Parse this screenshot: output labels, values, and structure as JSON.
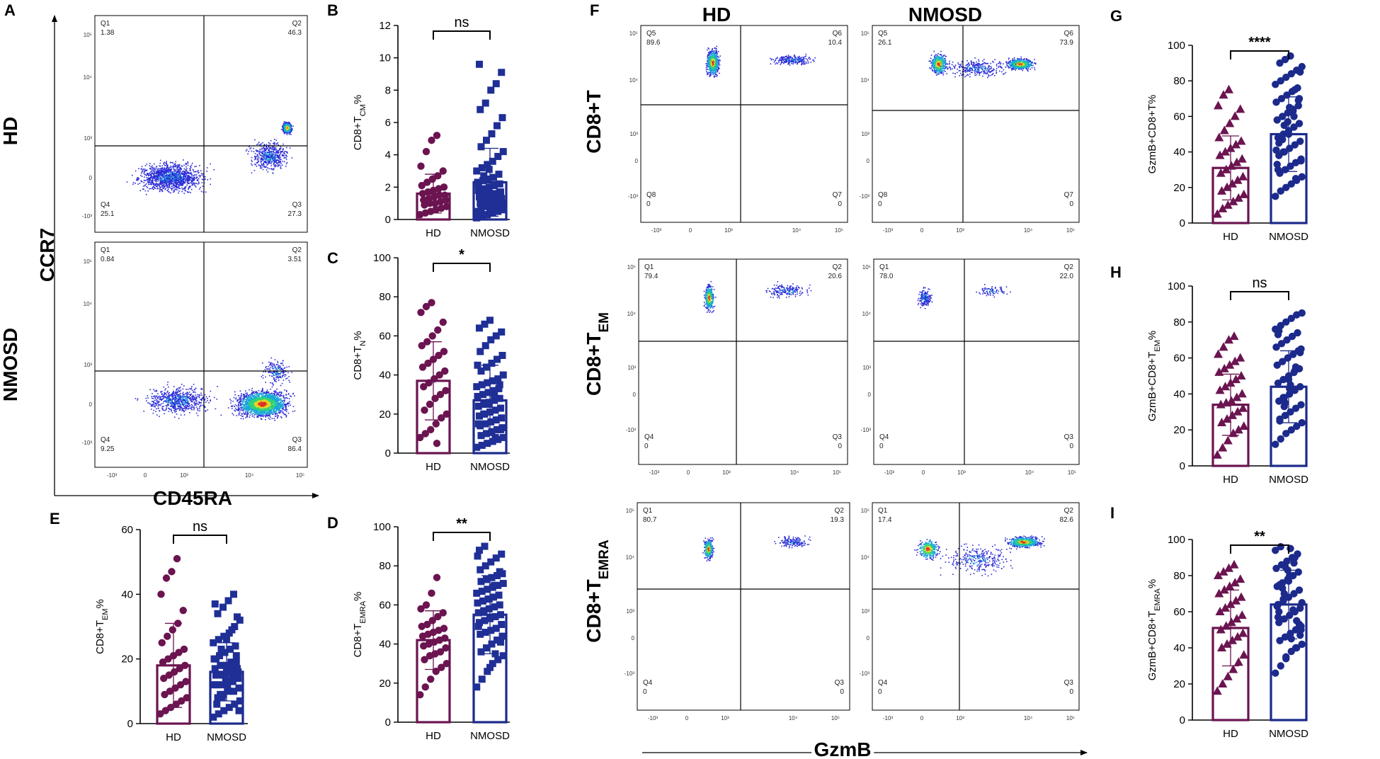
{
  "flow_A": {
    "letter": "A",
    "y_axis_label": "CCR7",
    "x_axis_label": "CD45RA",
    "x_ticks": [
      "-10³",
      "0",
      "10³",
      "10⁴",
      "10⁵"
    ],
    "y_ticks": [
      "10⁵",
      "10⁴",
      "10³",
      "0",
      "-10³"
    ],
    "rows": [
      {
        "label": "HD",
        "quads": [
          [
            "Q1",
            "1.38"
          ],
          [
            "Q2",
            "46.3"
          ],
          [
            "Q3",
            "27.3"
          ],
          [
            "Q4",
            "25.1"
          ]
        ]
      },
      {
        "label": "NMOSD",
        "quads": [
          [
            "Q1",
            "0.84"
          ],
          [
            "Q2",
            "3.51"
          ],
          [
            "Q3",
            "86.4"
          ],
          [
            "Q4",
            "9.25"
          ]
        ]
      }
    ]
  },
  "flow_F": {
    "letter": "F",
    "column_labels": [
      "HD",
      "NMOSD"
    ],
    "x_axis_label": "GzmB",
    "x_ticks": [
      "-10³",
      "0",
      "10³",
      "10⁴",
      "10⁵"
    ],
    "y_ticks": [
      "10⁵",
      "10⁴",
      "10³",
      "0",
      "-10³"
    ],
    "rows": [
      {
        "label": "CD8+T",
        "label_sub": "",
        "panels": [
          [
            [
              "Q5",
              "89.6"
            ],
            [
              "Q6",
              "10.4"
            ],
            [
              "Q7",
              "0"
            ],
            [
              "Q8",
              "0"
            ]
          ],
          [
            [
              "Q5",
              "26.1"
            ],
            [
              "Q6",
              "73.9"
            ],
            [
              "Q7",
              "0"
            ],
            [
              "Q8",
              "0"
            ]
          ]
        ]
      },
      {
        "label": "CD8+T",
        "label_sub": "EM",
        "panels": [
          [
            [
              "Q1",
              "79.4"
            ],
            [
              "Q2",
              "20.6"
            ],
            [
              "Q3",
              "0"
            ],
            [
              "Q4",
              "0"
            ]
          ],
          [
            [
              "Q1",
              "78.0"
            ],
            [
              "Q2",
              "22.0"
            ],
            [
              "Q3",
              "0"
            ],
            [
              "Q4",
              "0"
            ]
          ]
        ]
      },
      {
        "label": "CD8+T",
        "label_sub": "EMRA",
        "panels": [
          [
            [
              "Q1",
              "80.7"
            ],
            [
              "Q2",
              "19.3"
            ],
            [
              "Q3",
              "0"
            ],
            [
              "Q4",
              "0"
            ]
          ],
          [
            [
              "Q1",
              "17.4"
            ],
            [
              "Q2",
              "82.6"
            ],
            [
              "Q3",
              "0"
            ],
            [
              "Q4",
              "0"
            ]
          ]
        ]
      }
    ]
  },
  "colors": {
    "hd": "#6b1450",
    "nmosd": "#1c2a8c",
    "nmosd_square": "#1f2f96",
    "density": [
      "#2b2bd6",
      "#1aa6d8",
      "#2fd17a",
      "#e3d62a",
      "#e0321f"
    ]
  },
  "chart_data": [
    {
      "id": "B",
      "type": "bar",
      "marker": "circle/square",
      "ylabel_main": "CD8+T",
      "ylabel_sub": "CM",
      "ylabel_tail": "%",
      "categories": [
        "HD",
        "NMOSD"
      ],
      "means": [
        1.6,
        2.3
      ],
      "sd": [
        1.2,
        2.1
      ],
      "ylim": [
        0,
        12
      ],
      "yticks": [
        0,
        2,
        4,
        6,
        8,
        10,
        12
      ],
      "significance": "ns",
      "points": [
        [
          0.3,
          0.4,
          0.5,
          0.6,
          0.7,
          0.8,
          0.9,
          1.0,
          1.0,
          1.1,
          1.2,
          1.2,
          1.3,
          1.4,
          1.5,
          1.5,
          1.6,
          1.7,
          1.8,
          1.9,
          2.0,
          2.1,
          2.3,
          2.5,
          2.7,
          3.0,
          3.3,
          4.2,
          4.9,
          5.2
        ],
        [
          0.1,
          0.2,
          0.3,
          0.4,
          0.5,
          0.6,
          0.7,
          0.8,
          0.8,
          0.9,
          1.0,
          1.0,
          1.1,
          1.2,
          1.3,
          1.3,
          1.4,
          1.5,
          1.6,
          1.6,
          1.7,
          1.8,
          1.9,
          2.0,
          2.1,
          2.2,
          2.3,
          2.4,
          2.5,
          2.6,
          2.8,
          3.0,
          3.2,
          3.4,
          3.6,
          3.9,
          4.2,
          4.5,
          4.9,
          5.3,
          5.8,
          6.3,
          6.8,
          7.2,
          8.0,
          8.4,
          9.1,
          9.6,
          0.3,
          0.6,
          1.1,
          1.4,
          2.2,
          2.7,
          3.1,
          0.9,
          1.7,
          0.5
        ]
      ]
    },
    {
      "id": "C",
      "type": "bar",
      "marker": "circle/square",
      "ylabel_main": "CD8+T",
      "ylabel_sub": "N",
      "ylabel_tail": "%",
      "categories": [
        "HD",
        "NMOSD"
      ],
      "means": [
        37,
        27
      ],
      "sd": [
        20,
        18
      ],
      "ylim": [
        0,
        100
      ],
      "yticks": [
        0,
        20,
        40,
        60,
        80,
        100
      ],
      "significance": "*",
      "points": [
        [
          8,
          10,
          12,
          15,
          18,
          20,
          22,
          25,
          28,
          30,
          32,
          34,
          36,
          38,
          40,
          42,
          44,
          46,
          48,
          50,
          52,
          55,
          57,
          60,
          63,
          67,
          72,
          75,
          77,
          5
        ],
        [
          3,
          4,
          5,
          6,
          7,
          8,
          9,
          10,
          11,
          12,
          13,
          14,
          15,
          16,
          17,
          18,
          19,
          20,
          21,
          22,
          23,
          24,
          25,
          26,
          27,
          28,
          29,
          30,
          31,
          32,
          33,
          34,
          35,
          36,
          37,
          38,
          40,
          42,
          44,
          46,
          48,
          50,
          52,
          55,
          58,
          60,
          62,
          64,
          66,
          68,
          8,
          12,
          15,
          20,
          25,
          30,
          35,
          45
        ]
      ]
    },
    {
      "id": "D",
      "type": "bar",
      "marker": "circle/square",
      "ylabel_main": "CD8+T",
      "ylabel_sub": "EMRA",
      "ylabel_tail": "%",
      "categories": [
        "HD",
        "NMOSD"
      ],
      "means": [
        42,
        55
      ],
      "sd": [
        15,
        20
      ],
      "ylim": [
        0,
        100
      ],
      "yticks": [
        0,
        20,
        40,
        60,
        80,
        100
      ],
      "significance": "**",
      "points": [
        [
          14,
          18,
          22,
          26,
          28,
          30,
          32,
          34,
          35,
          36,
          38,
          39,
          40,
          41,
          42,
          43,
          44,
          45,
          46,
          47,
          48,
          49,
          50,
          52,
          54,
          56,
          58,
          60,
          66,
          74
        ],
        [
          18,
          22,
          26,
          30,
          32,
          34,
          36,
          38,
          40,
          42,
          44,
          45,
          46,
          47,
          48,
          50,
          51,
          52,
          53,
          54,
          55,
          56,
          57,
          58,
          59,
          60,
          61,
          62,
          63,
          64,
          65,
          66,
          67,
          68,
          69,
          70,
          71,
          72,
          73,
          74,
          75,
          76,
          78,
          80,
          82,
          84,
          86,
          88,
          90,
          28,
          35,
          41,
          49,
          57,
          63,
          70,
          77,
          85
        ]
      ]
    },
    {
      "id": "E",
      "type": "bar",
      "marker": "circle/square",
      "ylabel_main": "CD8+T",
      "ylabel_sub": "EM",
      "ylabel_tail": "%",
      "categories": [
        "HD",
        "NMOSD"
      ],
      "means": [
        18,
        16
      ],
      "sd": [
        13,
        9
      ],
      "ylim": [
        0,
        60
      ],
      "yticks": [
        0,
        20,
        40,
        60
      ],
      "significance": "ns",
      "points": [
        [
          3,
          4,
          5,
          6,
          7,
          8,
          9,
          10,
          11,
          12,
          13,
          14,
          15,
          16,
          17,
          18,
          19,
          20,
          21,
          22,
          23,
          25,
          27,
          29,
          31,
          35,
          40,
          45,
          47,
          51
        ],
        [
          2,
          3,
          4,
          5,
          6,
          7,
          8,
          9,
          10,
          10,
          11,
          12,
          12,
          13,
          14,
          14,
          15,
          15,
          16,
          16,
          17,
          17,
          18,
          18,
          19,
          19,
          20,
          21,
          22,
          23,
          24,
          25,
          26,
          27,
          28,
          30,
          32,
          34,
          36,
          38,
          40,
          4,
          6,
          8,
          11,
          13,
          16,
          20,
          23,
          26,
          29,
          33,
          37,
          9,
          14,
          18,
          21,
          12
        ]
      ]
    },
    {
      "id": "G",
      "type": "bar",
      "marker": "triangle/circle",
      "ylabel_main": "GzmB+CD8+T%",
      "ylabel_sub": "",
      "ylabel_tail": "",
      "categories": [
        "HD",
        "NMOSD"
      ],
      "means": [
        31,
        50
      ],
      "sd": [
        18,
        21
      ],
      "ylim": [
        0,
        100
      ],
      "yticks": [
        0,
        20,
        40,
        60,
        80,
        100
      ],
      "significance": "****",
      "points": [
        [
          5,
          8,
          10,
          12,
          14,
          16,
          18,
          20,
          22,
          24,
          26,
          28,
          30,
          32,
          34,
          36,
          38,
          40,
          42,
          44,
          46,
          48,
          52,
          56,
          60,
          64,
          66,
          72,
          75
        ],
        [
          15,
          18,
          20,
          22,
          24,
          26,
          28,
          30,
          32,
          34,
          36,
          38,
          40,
          42,
          44,
          46,
          48,
          50,
          52,
          54,
          56,
          58,
          60,
          62,
          64,
          66,
          68,
          70,
          72,
          74,
          76,
          78,
          80,
          82,
          84,
          86,
          88,
          90,
          92,
          94,
          25,
          35,
          45,
          55,
          65,
          75,
          85,
          30,
          40,
          50,
          60,
          70,
          33,
          47,
          57,
          63,
          69,
          41
        ]
      ]
    },
    {
      "id": "H",
      "type": "bar",
      "marker": "triangle/circle",
      "ylabel_main": "GzmB+CD8+T",
      "ylabel_sub": "EM",
      "ylabel_tail": "%",
      "categories": [
        "HD",
        "NMOSD"
      ],
      "means": [
        34,
        44
      ],
      "sd": [
        17,
        20
      ],
      "ylim": [
        0,
        100
      ],
      "yticks": [
        0,
        20,
        40,
        60,
        80,
        100
      ],
      "significance": "ns",
      "points": [
        [
          6,
          10,
          14,
          18,
          20,
          22,
          24,
          26,
          28,
          30,
          32,
          34,
          35,
          36,
          38,
          40,
          42,
          44,
          46,
          48,
          50,
          52,
          54,
          56,
          58,
          60,
          62,
          66,
          70,
          72
        ],
        [
          12,
          15,
          18,
          20,
          22,
          24,
          26,
          28,
          30,
          32,
          34,
          36,
          38,
          40,
          42,
          44,
          46,
          48,
          50,
          52,
          54,
          56,
          58,
          60,
          62,
          64,
          66,
          68,
          70,
          72,
          74,
          76,
          78,
          80,
          82,
          84,
          85,
          25,
          35,
          45,
          55,
          65,
          75,
          33,
          43,
          53,
          63,
          73,
          38,
          48
        ]
      ]
    },
    {
      "id": "I",
      "type": "bar",
      "marker": "triangle/circle",
      "ylabel_main": "GzmB+CD8+T",
      "ylabel_sub": "EMRA",
      "ylabel_tail": "%",
      "categories": [
        "HD",
        "NMOSD"
      ],
      "means": [
        51,
        64
      ],
      "sd": [
        21,
        19
      ],
      "ylim": [
        0,
        100
      ],
      "yticks": [
        0,
        20,
        40,
        60,
        80,
        100
      ],
      "significance": "**",
      "points": [
        [
          16,
          20,
          24,
          28,
          32,
          36,
          40,
          42,
          44,
          46,
          48,
          50,
          52,
          54,
          56,
          58,
          60,
          62,
          64,
          66,
          68,
          70,
          72,
          74,
          76,
          78,
          80,
          82,
          84,
          86
        ],
        [
          26,
          30,
          34,
          38,
          40,
          42,
          44,
          46,
          48,
          50,
          52,
          54,
          56,
          58,
          60,
          62,
          64,
          66,
          68,
          70,
          72,
          74,
          76,
          78,
          80,
          82,
          84,
          86,
          88,
          90,
          92,
          94,
          96,
          35,
          45,
          55,
          65,
          75,
          85,
          95,
          40,
          50,
          60,
          70,
          80,
          90,
          47,
          57,
          67,
          77,
          87,
          53,
          63,
          73,
          83,
          61
        ]
      ]
    }
  ]
}
